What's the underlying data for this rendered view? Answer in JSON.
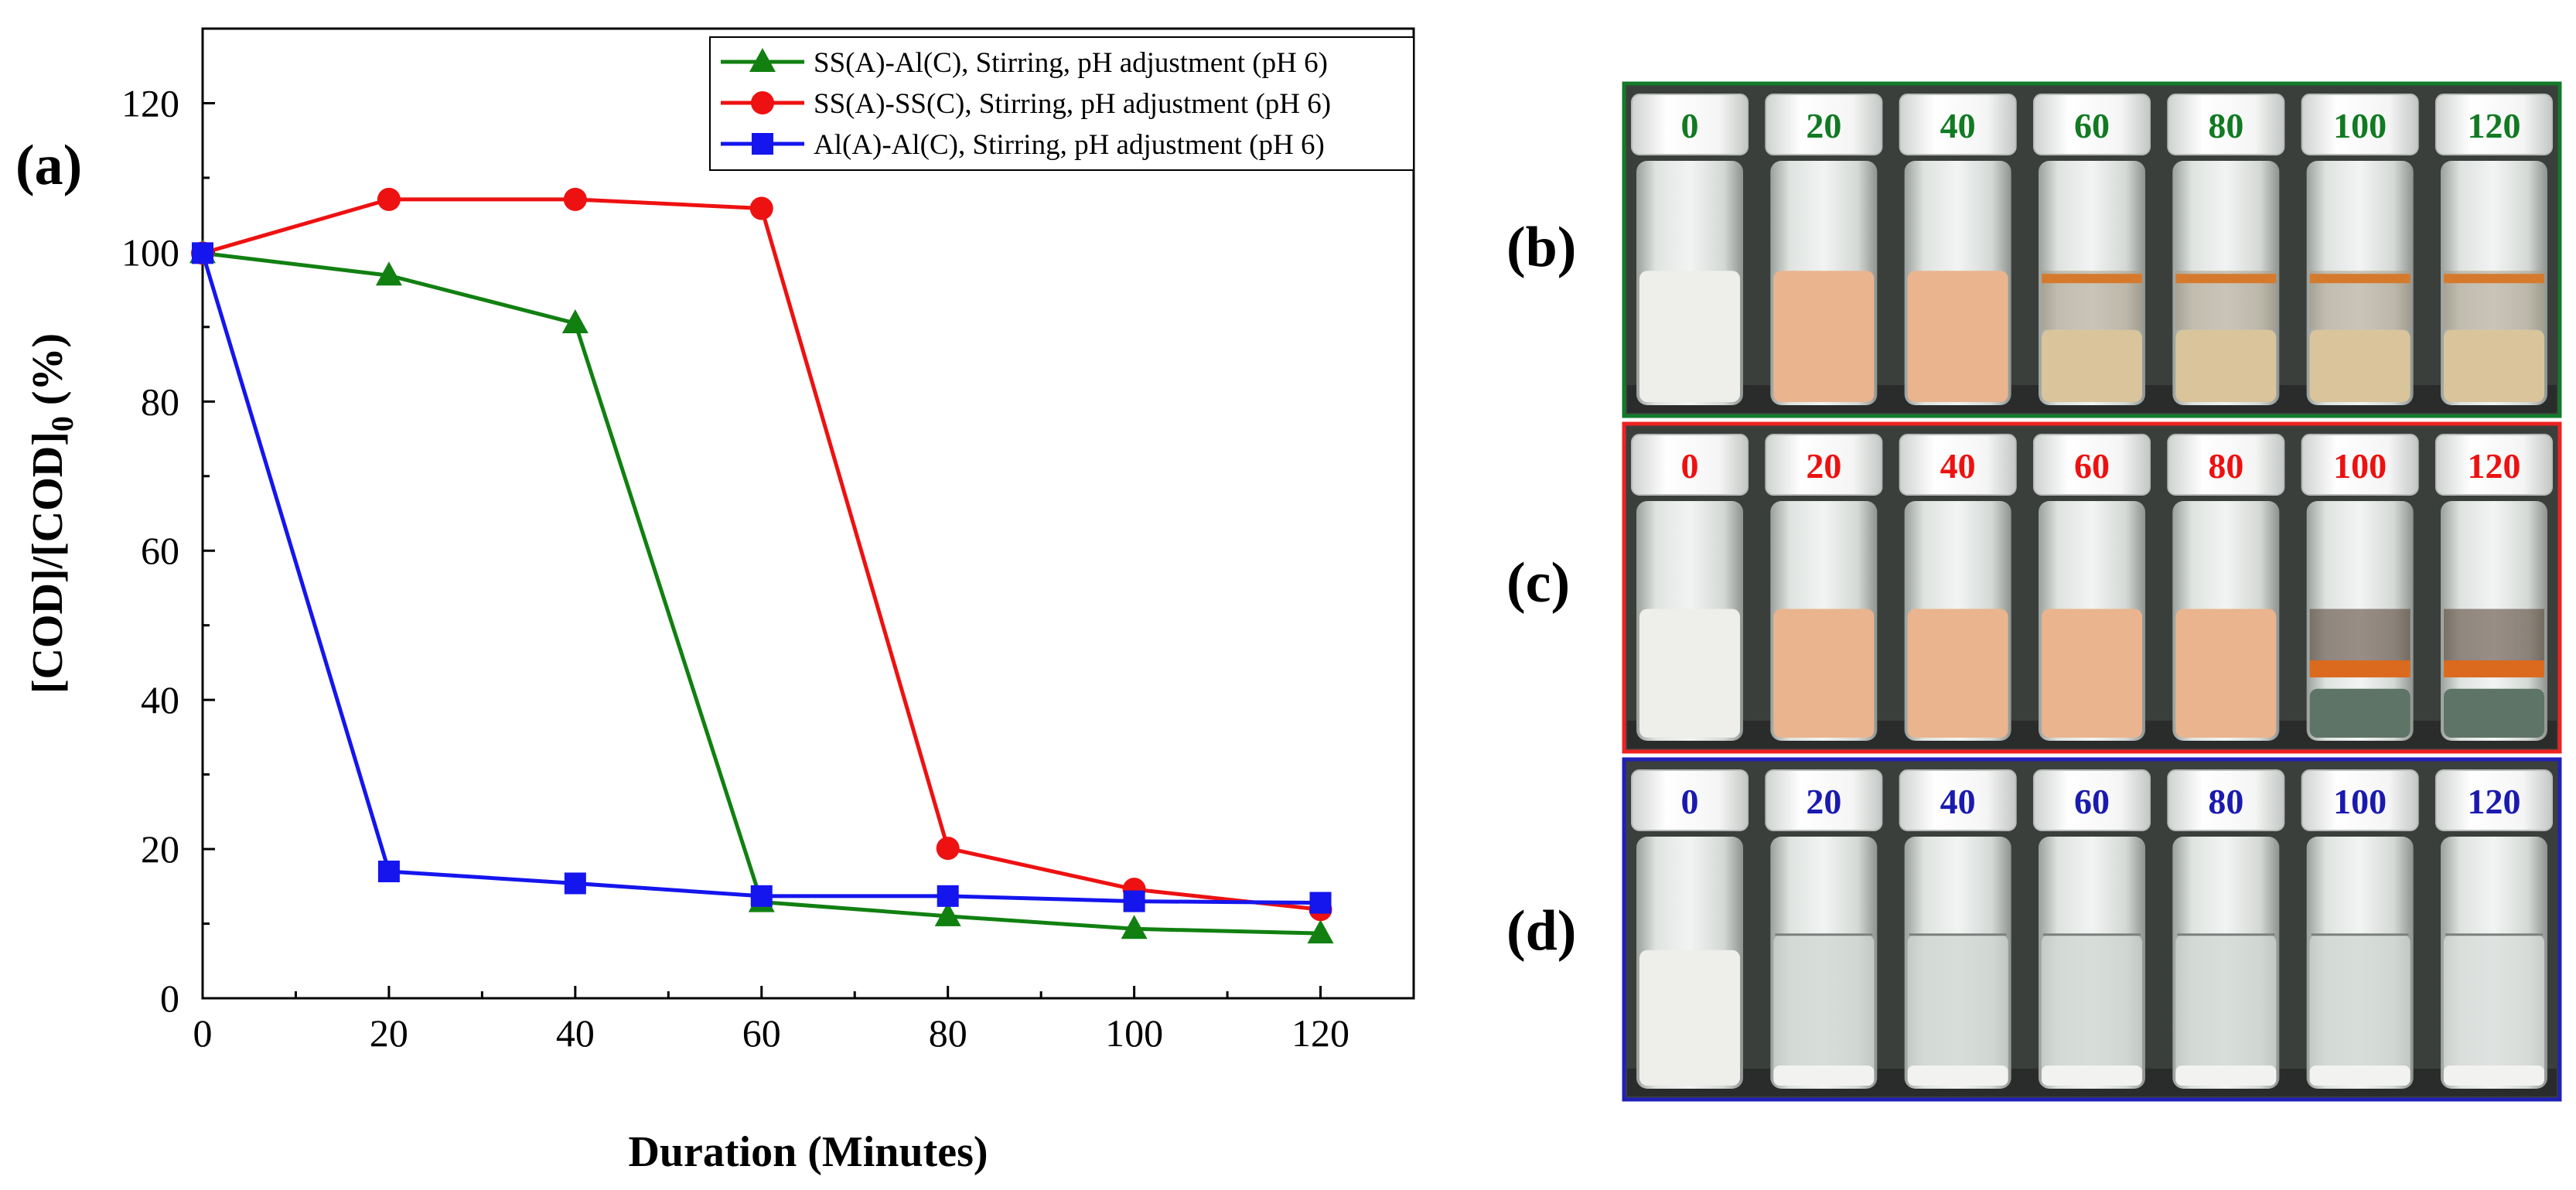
{
  "panel_letters": {
    "a": "(a)",
    "b": "(b)",
    "c": "(c)",
    "d": "(d)"
  },
  "chart_data": {
    "type": "line",
    "xlabel": "Duration (Minutes)",
    "ylabel": "[COD]/[COD]",
    "ylabel_sub": "0",
    "ylabel_unit": " (%)",
    "xlim": [
      0,
      130
    ],
    "ylim": [
      0,
      130
    ],
    "xticks": [
      0,
      20,
      40,
      60,
      80,
      100,
      120
    ],
    "yticks": [
      0,
      20,
      40,
      60,
      80,
      100,
      120
    ],
    "series": [
      {
        "name": "SS(A)-Al(C), Stirring, pH adjustment (pH 6)",
        "color": "#118011",
        "marker": "triangle",
        "x": [
          0,
          20,
          40,
          60,
          80,
          100,
          120
        ],
        "y": [
          99.9,
          96.9,
          90.5,
          12.9,
          11.0,
          9.3,
          8.7
        ]
      },
      {
        "name": "SS(A)-SS(C), Stirring, pH adjustment (pH 6)",
        "color": "#ee1111",
        "marker": "circle",
        "x": [
          0,
          20,
          40,
          60,
          80,
          100,
          120
        ],
        "y": [
          99.9,
          107.1,
          107.1,
          105.9,
          20.1,
          14.6,
          11.9
        ]
      },
      {
        "name": "Al(A)-Al(C), Stirring, pH adjustment (pH 6)",
        "color": "#1515ee",
        "marker": "square",
        "x": [
          0,
          20,
          40,
          60,
          80,
          100,
          120
        ],
        "y": [
          99.9,
          17.0,
          15.4,
          13.7,
          13.7,
          13.0,
          12.8
        ]
      }
    ],
    "legend_position": "top-right"
  },
  "photo_panels": [
    {
      "id": "b",
      "frame_color": "#137a2a",
      "label_color": "#117a22",
      "vials": [
        "0",
        "20",
        "40",
        "60",
        "80",
        "100",
        "120"
      ]
    },
    {
      "id": "c",
      "frame_color": "#ee2222",
      "label_color": "#ee1111",
      "vials": [
        "0",
        "20",
        "40",
        "60",
        "80",
        "100",
        "120"
      ]
    },
    {
      "id": "d",
      "frame_color": "#2020b8",
      "label_color": "#1a1ab0",
      "vials": [
        "0",
        "20",
        "40",
        "60",
        "80",
        "100",
        "120"
      ]
    }
  ]
}
